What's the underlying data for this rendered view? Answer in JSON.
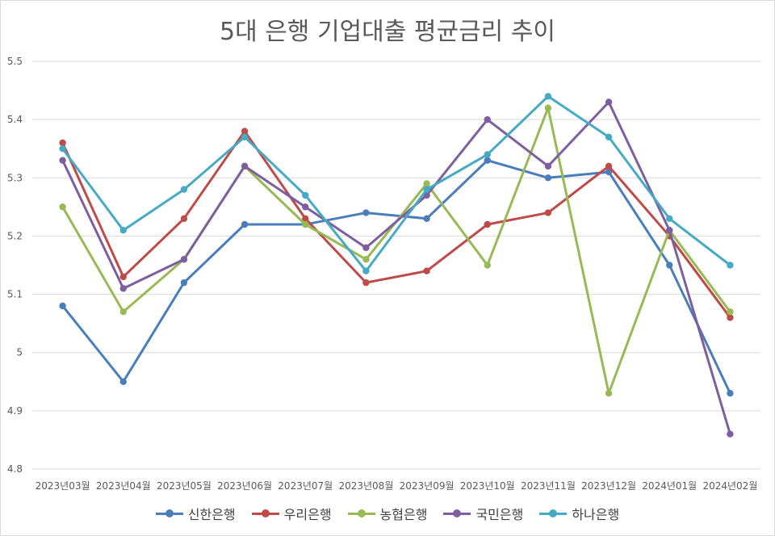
{
  "chart_data": {
    "type": "line",
    "title": "5대 은행 기업대출 평균금리 추이",
    "xlabel": "",
    "ylabel": "",
    "ylim": [
      4.8,
      5.5
    ],
    "yticks": [
      "4.8",
      "4.9",
      "5",
      "5.1",
      "5.2",
      "5.3",
      "5.4",
      "5.5"
    ],
    "grid": true,
    "legend_position": "bottom",
    "categories": [
      "2023년03월",
      "2023년04월",
      "2023년05월",
      "2023년06월",
      "2023년07월",
      "2023년08월",
      "2023년09월",
      "2023년10월",
      "2023년11월",
      "2023년12월",
      "2024년01월",
      "2024년02월"
    ],
    "series": [
      {
        "name": "신한은행",
        "color": "#4a7ebb",
        "values": [
          5.08,
          4.95,
          5.12,
          5.22,
          5.22,
          5.24,
          5.23,
          5.33,
          5.3,
          5.31,
          5.15,
          4.93
        ]
      },
      {
        "name": "우리은행",
        "color": "#be4b48",
        "values": [
          5.36,
          5.13,
          5.23,
          5.38,
          5.23,
          5.12,
          5.14,
          5.22,
          5.24,
          5.32,
          5.2,
          5.06
        ]
      },
      {
        "name": "농협은행",
        "color": "#98b954",
        "values": [
          5.25,
          5.07,
          5.16,
          5.32,
          5.22,
          5.16,
          5.29,
          5.15,
          5.42,
          4.93,
          5.21,
          5.07
        ]
      },
      {
        "name": "국민은행",
        "color": "#7d5fa0",
        "values": [
          5.33,
          5.11,
          5.16,
          5.32,
          5.25,
          5.18,
          5.27,
          5.4,
          5.32,
          5.43,
          5.21,
          4.86
        ]
      },
      {
        "name": "하나은행",
        "color": "#46aac5",
        "values": [
          5.35,
          5.21,
          5.28,
          5.37,
          5.27,
          5.14,
          5.28,
          5.34,
          5.44,
          5.37,
          5.23,
          5.15
        ]
      }
    ]
  }
}
